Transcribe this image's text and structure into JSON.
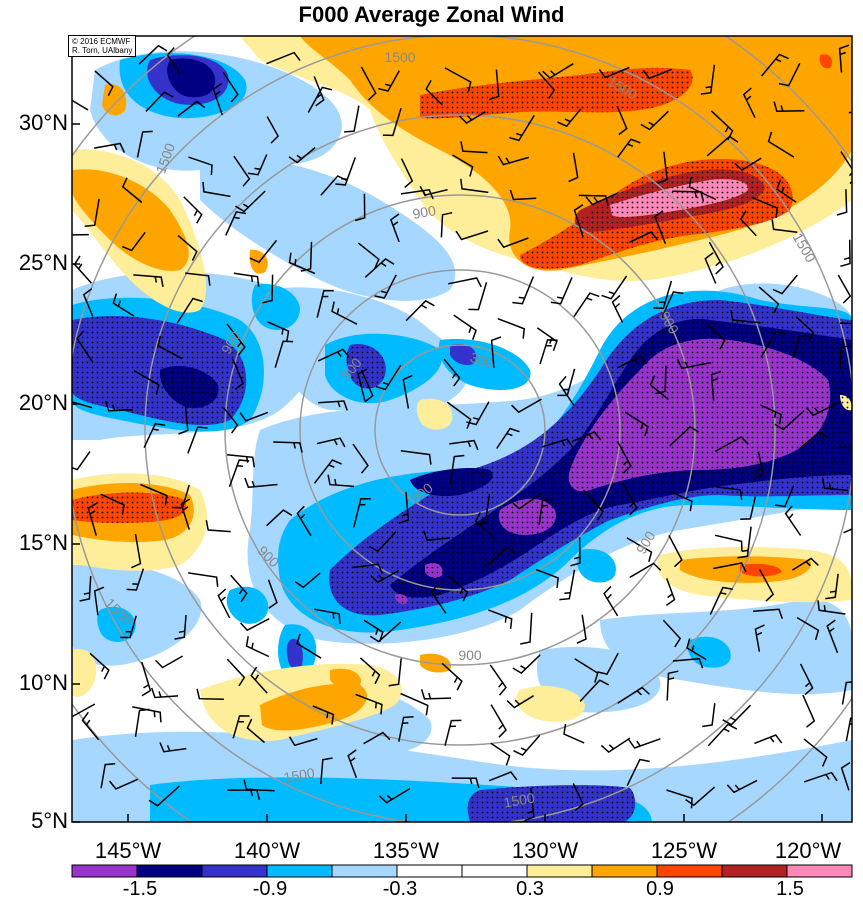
{
  "title": "F000 Average Zonal Wind",
  "credit": {
    "line1": "© 2016 ECMWF",
    "line2": "R. Torn, UAlbany"
  },
  "lat_labels": [
    "30°N",
    "25°N",
    "20°N",
    "15°N",
    "10°N",
    "5°N"
  ],
  "lon_labels": [
    "145°W",
    "140°W",
    "135°W",
    "130°W",
    "125°W",
    "120°W"
  ],
  "colorbar": {
    "colors": [
      "#9933cc",
      "#000080",
      "#3333cc",
      "#00bbff",
      "#a6d8ff",
      "#ffffff",
      "#ffffff",
      "#ffee99",
      "#ffa500",
      "#ff4500",
      "#b22222",
      "#ff88bb"
    ],
    "labels": [
      "-1.5",
      "-0.9",
      "-0.3",
      "0.3",
      "0.9",
      "1.5"
    ]
  },
  "contour_labels": [
    "1500",
    "1500",
    "1500",
    "1500",
    "1500",
    "1500",
    "1500",
    "900",
    "900",
    "900",
    "900",
    "900",
    "300",
    "300",
    "300",
    "900"
  ],
  "map_data": {
    "lat_range": [
      5,
      33
    ],
    "lon_range": [
      -147,
      -119
    ],
    "variable": "Average Zonal Wind",
    "contour_levels": [
      -1.5,
      -1.2,
      -0.9,
      -0.6,
      -0.3,
      0.3,
      0.6,
      0.9,
      1.2,
      1.5
    ]
  }
}
